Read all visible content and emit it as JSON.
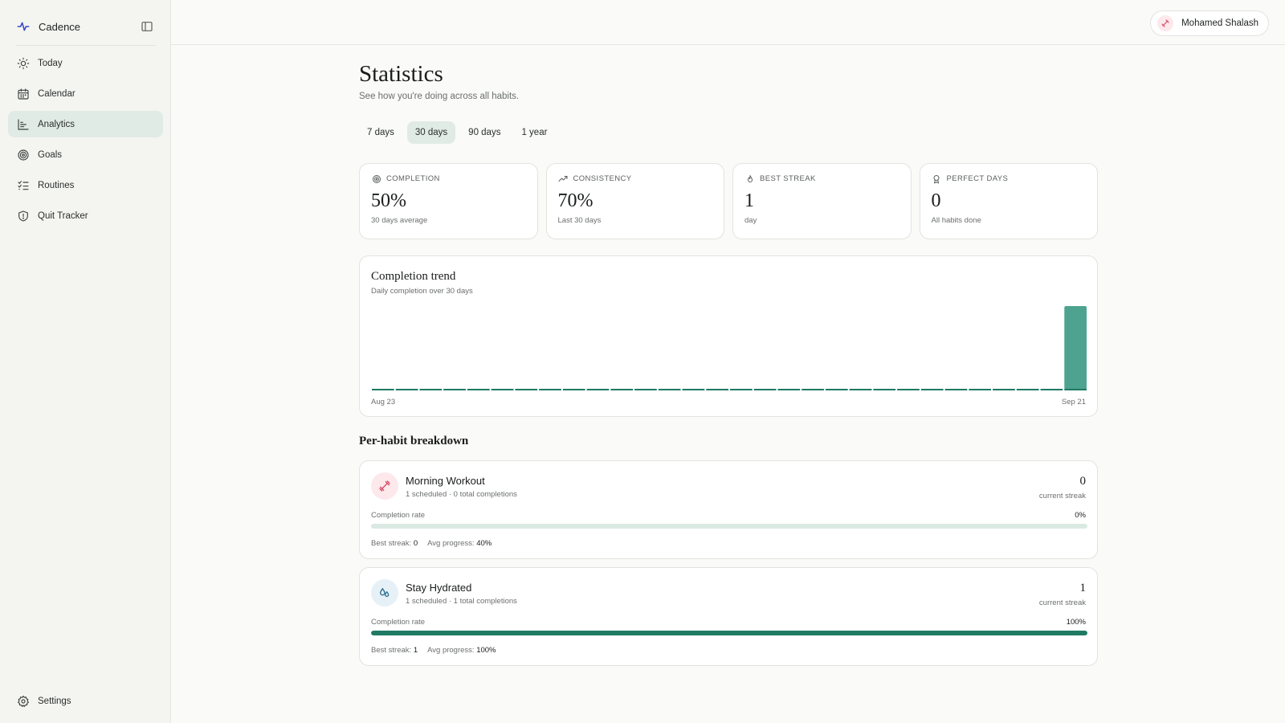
{
  "app": {
    "name": "Cadence"
  },
  "sidebar": {
    "items": [
      {
        "label": "Today",
        "icon": "sun-icon",
        "active": false
      },
      {
        "label": "Calendar",
        "icon": "calendar-icon",
        "active": false
      },
      {
        "label": "Analytics",
        "icon": "chart-icon",
        "active": true
      },
      {
        "label": "Goals",
        "icon": "target-icon",
        "active": false
      },
      {
        "label": "Routines",
        "icon": "checklist-icon",
        "active": false
      },
      {
        "label": "Quit Tracker",
        "icon": "shield-icon",
        "active": false
      }
    ],
    "settings_label": "Settings"
  },
  "user": {
    "name": "Mohamed Shalash"
  },
  "page": {
    "title": "Statistics",
    "subtitle": "See how you're doing across all habits."
  },
  "tabs": [
    {
      "label": "7 days",
      "active": false
    },
    {
      "label": "30 days",
      "active": true
    },
    {
      "label": "90 days",
      "active": false
    },
    {
      "label": "1 year",
      "active": false
    }
  ],
  "stats": [
    {
      "label": "Completion",
      "value": "50%",
      "note": "30 days average",
      "icon": "target-icon"
    },
    {
      "label": "Consistency",
      "value": "70%",
      "note": "Last 30 days",
      "icon": "trending-up-icon"
    },
    {
      "label": "Best streak",
      "value": "1",
      "note": "day",
      "icon": "flame-icon"
    },
    {
      "label": "Perfect days",
      "value": "0",
      "note": "All habits done",
      "icon": "award-icon"
    }
  ],
  "trend": {
    "title": "Completion trend",
    "subtitle": "Daily completion over 30 days",
    "x_start": "Aug 23",
    "x_end": "Sep 21"
  },
  "chart_data": {
    "type": "bar",
    "title": "Completion trend",
    "subtitle": "Daily completion over 30 days",
    "x_tick_labels": [
      "Aug 23",
      "Sep 21"
    ],
    "values": [
      0,
      0,
      0,
      0,
      0,
      0,
      0,
      0,
      0,
      0,
      0,
      0,
      0,
      0,
      0,
      0,
      0,
      0,
      0,
      0,
      0,
      0,
      0,
      0,
      0,
      0,
      0,
      0,
      0,
      100
    ],
    "ylim": [
      0,
      100
    ],
    "bar_color": "#4da390",
    "baseline_color": "#1f7a64"
  },
  "breakdown": {
    "title": "Per-habit breakdown",
    "rate_label": "Completion rate",
    "streak_label": "current streak",
    "best_streak_label": "Best streak:",
    "avg_progress_label": "Avg progress:",
    "habits": [
      {
        "name": "Morning Workout",
        "meta": "1 scheduled · 0 total completions",
        "current_streak": "0",
        "rate_text": "0%",
        "rate": 0,
        "best_streak": "0",
        "avg_progress": "40%",
        "icon": "dumbbell-icon",
        "icon_bg": "#fde8ec",
        "icon_color": "#d2435f"
      },
      {
        "name": "Stay Hydrated",
        "meta": "1 scheduled · 1 total completions",
        "current_streak": "1",
        "rate_text": "100%",
        "rate": 100,
        "best_streak": "1",
        "avg_progress": "100%",
        "icon": "droplets-icon",
        "icon_bg": "#e6f1f7",
        "icon_color": "#2d6f8f"
      }
    ]
  },
  "colors": {
    "accent": "#1f7a64",
    "active_bg": "#e1ebe6"
  }
}
